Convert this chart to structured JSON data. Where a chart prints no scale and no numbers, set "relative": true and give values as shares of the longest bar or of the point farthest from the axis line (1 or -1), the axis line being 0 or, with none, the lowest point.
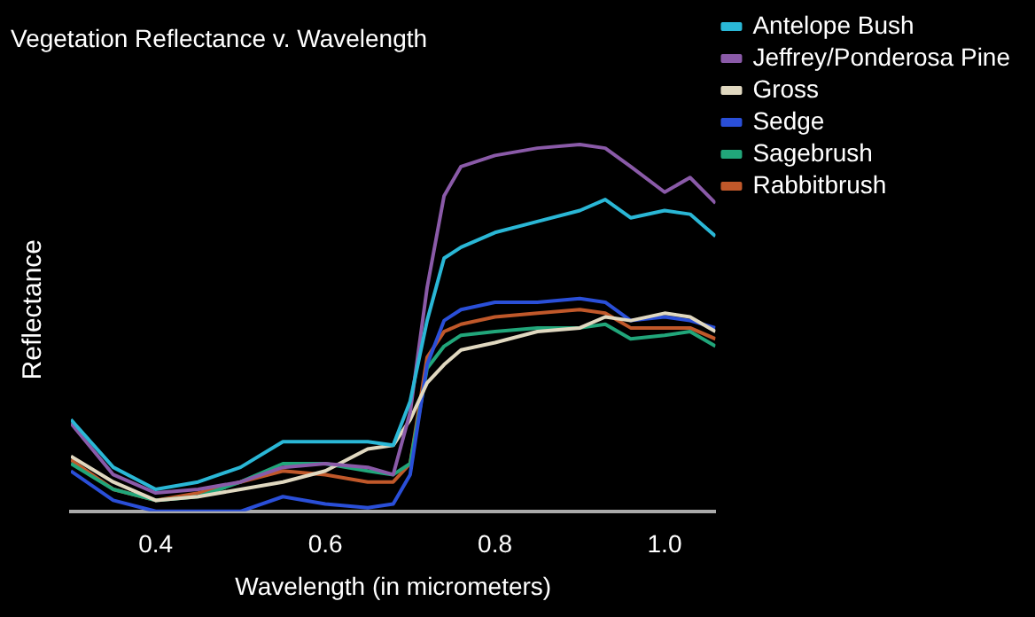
{
  "chart_data": {
    "type": "line",
    "title": "Vegetation Reflectance v. Wavelength",
    "xlabel": "Wavelength (in micrometers)",
    "ylabel": "Reflectance",
    "relative": true,
    "marker": "none",
    "legend": "right",
    "x": [
      0.3,
      0.35,
      0.4,
      0.45,
      0.5,
      0.55,
      0.6,
      0.65,
      0.68,
      0.7,
      0.72,
      0.74,
      0.76,
      0.8,
      0.85,
      0.9,
      0.93,
      0.96,
      1.0,
      1.03,
      1.06
    ],
    "xlim": [
      0.3,
      1.06
    ],
    "xticks": [
      0.4,
      0.6,
      0.8,
      {
        "value": 1,
        "label": "1.0"
      }
    ],
    "series": [
      {
        "name": "Antelope Bush",
        "color": "#2ab7d6",
        "values": [
          0.25,
          0.12,
          0.06,
          0.08,
          0.12,
          0.19,
          0.19,
          0.19,
          0.18,
          0.3,
          0.52,
          0.69,
          0.72,
          0.76,
          0.79,
          0.82,
          0.85,
          0.8,
          0.82,
          0.81,
          0.75
        ]
      },
      {
        "name": "Jeffrey/Ponderosa Pine",
        "color": "#8a5aa8",
        "values": [
          0.24,
          0.1,
          0.05,
          0.06,
          0.08,
          0.12,
          0.13,
          0.12,
          0.1,
          0.27,
          0.61,
          0.86,
          0.94,
          0.97,
          0.99,
          1.0,
          0.99,
          0.94,
          0.87,
          0.91,
          0.84
        ]
      },
      {
        "name": "Gross",
        "color": "#e0d8c0",
        "values": [
          0.15,
          0.08,
          0.03,
          0.04,
          0.06,
          0.08,
          0.11,
          0.17,
          0.18,
          0.25,
          0.35,
          0.4,
          0.44,
          0.46,
          0.49,
          0.5,
          0.53,
          0.52,
          0.54,
          0.53,
          0.49
        ]
      },
      {
        "name": "Sedge",
        "color": "#2a4fd8",
        "values": [
          0.11,
          0.03,
          0.0,
          0.0,
          0.0,
          0.04,
          0.02,
          0.01,
          0.02,
          0.1,
          0.4,
          0.52,
          0.55,
          0.57,
          0.57,
          0.58,
          0.57,
          0.52,
          0.53,
          0.52,
          0.5
        ]
      },
      {
        "name": "Sagebrush",
        "color": "#21a67a",
        "values": [
          0.13,
          0.06,
          0.03,
          0.04,
          0.08,
          0.13,
          0.13,
          0.11,
          0.1,
          0.13,
          0.39,
          0.45,
          0.48,
          0.49,
          0.5,
          0.5,
          0.51,
          0.47,
          0.48,
          0.49,
          0.45
        ]
      },
      {
        "name": "Rabbitbrush",
        "color": "#c0582a",
        "values": [
          0.14,
          0.06,
          0.03,
          0.05,
          0.08,
          0.11,
          0.1,
          0.08,
          0.08,
          0.13,
          0.42,
          0.49,
          0.51,
          0.53,
          0.54,
          0.55,
          0.54,
          0.5,
          0.5,
          0.5,
          0.47
        ]
      }
    ]
  }
}
